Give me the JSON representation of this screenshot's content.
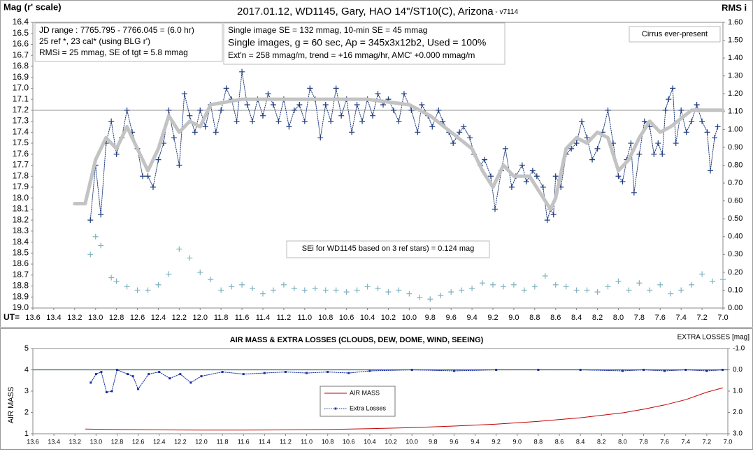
{
  "chart_data": [
    {
      "type": "line",
      "title": "2017.01.12,  WD1145, Gary, HAO  14\"/ST10(C), Arizona",
      "subtitle": " - v7114",
      "y_label": "Mag (r' scale)",
      "y2_label": "RMS i",
      "x_label": "UT=",
      "y_inverted": true,
      "ylim": [
        16.4,
        19.0
      ],
      "yticks": [
        16.4,
        16.5,
        16.6,
        16.7,
        16.8,
        16.9,
        {
          "value": 17,
          "label": "17.0"
        },
        17.1,
        17.2,
        17.3,
        17.4,
        17.5,
        17.6,
        17.7,
        17.8,
        17.9,
        {
          "value": 18,
          "label": "18.0"
        },
        18.1,
        18.2,
        18.3,
        18.4,
        18.5,
        18.6,
        18.7,
        18.8,
        18.9,
        {
          "value": 19,
          "label": "19.0"
        }
      ],
      "y2lim": [
        0,
        1.6
      ],
      "y2ticks": [
        {
          "value": 0,
          "label": "0.00"
        },
        {
          "value": 0.1,
          "label": "0.10"
        },
        {
          "value": 0.2,
          "label": "0.20"
        },
        {
          "value": 0.3,
          "label": "0.30"
        },
        {
          "value": 0.4,
          "label": "0.40"
        },
        {
          "value": 0.5,
          "label": "0.50"
        },
        {
          "value": 0.6,
          "label": "0.60"
        },
        {
          "value": 0.7,
          "label": "0.70"
        },
        {
          "value": 0.8,
          "label": "0.80"
        },
        {
          "value": 0.9,
          "label": "0.90"
        },
        {
          "value": 1,
          "label": "1.00"
        },
        {
          "value": 1.1,
          "label": "1.10"
        },
        {
          "value": 1.2,
          "label": "1.20"
        },
        {
          "value": 1.3,
          "label": "1.30"
        },
        {
          "value": 1.4,
          "label": "1.40"
        },
        {
          "value": 1.5,
          "label": "1.50"
        },
        {
          "value": 1.6,
          "label": "1.60"
        }
      ],
      "xlim": [
        7.0,
        13.6
      ],
      "xticks": [
        {
          "value": 7,
          "label": "7.0"
        },
        7.2,
        7.4,
        7.6,
        7.8,
        {
          "value": 8,
          "label": "8.0"
        },
        8.2,
        8.4,
        8.6,
        8.8,
        {
          "value": 9,
          "label": "9.0"
        },
        9.2,
        9.4,
        9.6,
        9.8,
        {
          "value": 10,
          "label": "10.0"
        },
        10.2,
        10.4,
        10.6,
        10.8,
        {
          "value": 11,
          "label": "11.0"
        },
        11.2,
        11.4,
        11.6,
        11.8,
        {
          "value": 12,
          "label": "12.0"
        },
        12.2,
        12.4,
        12.6,
        12.8,
        {
          "value": 13,
          "label": "13.0"
        },
        13.2,
        13.4,
        13.6
      ],
      "hlines": [
        {
          "value": 17.2,
          "color": "#a0a0a0"
        }
      ],
      "series": [
        {
          "color": "#1f3b7a",
          "line": "dotted",
          "marker": "plus",
          "width": 1,
          "x": [
            7.05,
            7.08,
            7.12,
            7.15,
            7.2,
            7.25,
            7.3,
            7.35,
            7.4,
            7.45,
            7.48,
            7.52,
            7.55,
            7.58,
            7.62,
            7.66,
            7.7,
            7.75,
            7.8,
            7.85,
            7.88,
            7.92,
            7.96,
            8.0,
            8.05,
            8.1,
            8.15,
            8.2,
            8.25,
            8.3,
            8.35,
            8.4,
            8.45,
            8.5,
            8.55,
            8.6,
            8.62,
            8.65,
            8.68,
            8.72,
            8.78,
            8.82,
            8.88,
            8.92,
            8.98,
            9.02,
            9.08,
            9.12,
            9.18,
            9.22,
            9.28,
            9.32,
            9.38,
            9.42,
            9.48,
            9.52,
            9.58,
            9.62,
            9.68,
            9.72,
            9.78,
            9.82,
            9.88,
            9.92,
            9.98,
            10.05,
            10.1,
            10.15,
            10.2,
            10.25,
            10.3,
            10.35,
            10.4,
            10.45,
            10.5,
            10.55,
            10.6,
            10.65,
            10.7,
            10.75,
            10.8,
            10.85,
            10.9,
            10.95,
            11.0,
            11.05,
            11.1,
            11.15,
            11.2,
            11.25,
            11.3,
            11.35,
            11.4,
            11.45,
            11.5,
            11.55,
            11.6,
            11.65,
            11.7,
            11.75,
            11.8,
            11.85,
            11.9,
            11.95,
            12.0,
            12.05,
            12.1,
            12.15,
            12.2,
            12.25,
            12.3,
            12.35,
            12.4,
            12.45,
            12.5,
            12.55,
            12.6,
            12.65,
            12.7,
            12.75,
            12.8,
            12.85,
            12.9,
            12.95,
            13.0,
            13.05
          ],
          "values": [
            17.35,
            17.45,
            17.75,
            17.4,
            17.3,
            17.15,
            17.3,
            17.4,
            17.2,
            17.5,
            17.0,
            17.1,
            17.2,
            17.6,
            17.5,
            17.6,
            17.35,
            17.3,
            17.6,
            17.95,
            17.5,
            17.65,
            17.85,
            17.8,
            17.5,
            17.2,
            17.4,
            17.55,
            17.65,
            17.45,
            17.3,
            17.5,
            17.55,
            17.6,
            17.9,
            17.8,
            18.15,
            18.1,
            18.2,
            17.9,
            17.8,
            17.75,
            17.85,
            17.7,
            17.8,
            17.9,
            17.55,
            17.75,
            18.1,
            17.8,
            17.65,
            17.7,
            17.6,
            17.45,
            17.35,
            17.4,
            17.5,
            17.4,
            17.3,
            17.2,
            17.35,
            17.25,
            17.15,
            17.4,
            17.2,
            17.05,
            17.3,
            17.2,
            17.1,
            17.15,
            17.05,
            17.25,
            17.1,
            17.3,
            17.15,
            17.4,
            17.1,
            17.25,
            17.0,
            17.3,
            17.15,
            17.45,
            17.1,
            17.0,
            17.3,
            17.15,
            17.2,
            17.35,
            17.1,
            17.3,
            17.15,
            17.05,
            17.25,
            17.1,
            17.3,
            17.15,
            16.85,
            17.3,
            17.1,
            17.0,
            17.2,
            17.4,
            17.15,
            17.35,
            17.2,
            17.4,
            17.25,
            17.05,
            17.7,
            17.45,
            17.2,
            17.5,
            17.65,
            17.9,
            17.8,
            17.8,
            17.55,
            17.4,
            17.2,
            17.45,
            17.6,
            17.3,
            17.5,
            18.15,
            17.7,
            18.2
          ]
        },
        {
          "color": "#c3c3c3",
          "line": "solid",
          "marker": "none",
          "width": 5,
          "x": [
            7.0,
            7.3,
            7.5,
            7.6,
            7.7,
            7.8,
            7.9,
            8.0,
            8.1,
            8.2,
            8.3,
            8.4,
            8.5,
            8.6,
            8.65,
            8.75,
            8.85,
            9.0,
            9.1,
            9.2,
            9.3,
            9.4,
            9.6,
            9.8,
            10.0,
            10.4,
            11.0,
            11.6,
            11.9,
            12.0,
            12.1,
            12.2,
            12.3,
            12.4,
            12.5,
            12.6,
            12.7,
            12.8,
            12.9,
            13.0,
            13.1,
            13.2
          ],
          "values": [
            17.2,
            17.2,
            17.35,
            17.4,
            17.3,
            17.45,
            17.65,
            17.75,
            17.45,
            17.4,
            17.5,
            17.45,
            17.55,
            18.0,
            18.1,
            17.95,
            17.8,
            17.8,
            17.7,
            17.9,
            17.75,
            17.55,
            17.4,
            17.25,
            17.15,
            17.1,
            17.1,
            17.1,
            17.15,
            17.35,
            17.3,
            17.4,
            17.25,
            17.55,
            17.75,
            17.55,
            17.35,
            17.55,
            17.45,
            17.65,
            18.05,
            18.05
          ]
        },
        {
          "color": "#7fb3c0",
          "line": "none",
          "marker": "plus",
          "width": 1,
          "axis": "y2",
          "x": [
            7.0,
            7.1,
            7.2,
            7.3,
            7.4,
            7.5,
            7.6,
            7.7,
            7.8,
            7.9,
            8.0,
            8.1,
            8.2,
            8.3,
            8.4,
            8.5,
            8.6,
            8.7,
            8.8,
            8.9,
            9.0,
            9.1,
            9.2,
            9.3,
            9.4,
            9.5,
            9.6,
            9.7,
            9.8,
            9.9,
            10.0,
            10.1,
            10.2,
            10.3,
            10.4,
            10.5,
            10.6,
            10.7,
            10.8,
            10.9,
            11.0,
            11.1,
            11.2,
            11.3,
            11.4,
            11.5,
            11.6,
            11.7,
            11.8,
            11.9,
            12.0,
            12.1,
            12.2,
            12.3,
            12.4,
            12.5,
            12.6,
            12.7,
            12.8,
            12.85,
            12.95,
            13.0,
            13.05
          ],
          "values": [
            0.16,
            0.15,
            0.19,
            0.13,
            0.1,
            0.08,
            0.13,
            0.1,
            0.14,
            0.1,
            0.15,
            0.12,
            0.09,
            0.1,
            0.1,
            0.12,
            0.13,
            0.18,
            0.12,
            0.1,
            0.13,
            0.12,
            0.13,
            0.14,
            0.11,
            0.1,
            0.09,
            0.07,
            0.05,
            0.06,
            0.08,
            0.1,
            0.09,
            0.11,
            0.12,
            0.1,
            0.09,
            0.1,
            0.1,
            0.11,
            0.1,
            0.11,
            0.13,
            0.1,
            0.08,
            0.11,
            0.13,
            0.12,
            0.1,
            0.16,
            0.2,
            0.28,
            0.33,
            0.19,
            0.13,
            0.1,
            0.1,
            0.12,
            0.15,
            0.17,
            0.35,
            0.4,
            0.3
          ]
        }
      ],
      "text_boxes": [
        [
          "JD range  : 7765.795 - 7766.045 = (6.0 hr)",
          "25 ref *, 23 cal* (using BLG r')",
          "RMSi = 25 mmag, SE of tgt = 5.8 mmag"
        ],
        [
          "Single image SE = 132 mmag, 10-min SE = 45 mmag",
          "Single images, g = 60 sec, Ap = 345x3x12b2, Used = 100%",
          "Ext'n = 258  mmag/m, trend = +16 mmag/hr, AMC' +0.000 mmag/m"
        ],
        [
          "Cirrus ever-present"
        ],
        [
          "SEi for WD1145 based on 3 ref stars) = 0.124 mag"
        ]
      ]
    },
    {
      "type": "line",
      "title": "AIR MASS & EXTRA LOSSES (CLOUDS, DEW, DOME, WIND, SEEING)",
      "y_label": "AIR MASS",
      "y2_label": "EXTRA LOSSES [mag]",
      "ylim": [
        1,
        5
      ],
      "yticks": [
        1,
        2,
        3,
        4,
        5
      ],
      "y2_inverted": true,
      "y2lim": [
        -1,
        3
      ],
      "y2ticks": [
        {
          "value": -1,
          "label": "-1.0"
        },
        {
          "value": 0,
          "label": "0.0"
        },
        {
          "value": 1,
          "label": "1.0"
        },
        {
          "value": 2,
          "label": "2.0"
        },
        {
          "value": 3,
          "label": "3.0"
        }
      ],
      "xlim": [
        7.0,
        13.6
      ],
      "xticks": [
        {
          "value": 7,
          "label": "7.0"
        },
        7.2,
        7.4,
        7.6,
        7.8,
        {
          "value": 8,
          "label": "8.0"
        },
        8.2,
        8.4,
        8.6,
        8.8,
        {
          "value": 9,
          "label": "9.0"
        },
        9.2,
        9.4,
        9.6,
        9.8,
        {
          "value": 10,
          "label": "10.0"
        },
        10.2,
        10.4,
        10.6,
        10.8,
        {
          "value": 11,
          "label": "11.0"
        },
        11.2,
        11.4,
        11.6,
        11.8,
        {
          "value": 12,
          "label": "12.0"
        },
        12.2,
        12.4,
        12.6,
        12.8,
        {
          "value": 13,
          "label": "13.0"
        },
        13.2,
        13.4,
        13.6
      ],
      "hlines": [
        {
          "value": 4,
          "color": "#2a6b6b"
        }
      ],
      "series": [
        {
          "name": "AIR MASS",
          "color": "#c00000",
          "line": "solid",
          "marker": "none",
          "width": 1,
          "x": [
            7.05,
            7.2,
            7.4,
            7.6,
            7.8,
            8.0,
            8.4,
            8.8,
            9.2,
            9.6,
            10.0,
            10.4,
            10.8,
            11.2,
            11.6,
            12.0,
            12.4,
            12.8,
            13.1
          ],
          "values": [
            3.15,
            2.95,
            2.6,
            2.35,
            2.15,
            1.98,
            1.75,
            1.58,
            1.45,
            1.36,
            1.29,
            1.24,
            1.2,
            1.18,
            1.17,
            1.17,
            1.18,
            1.2,
            1.22
          ]
        },
        {
          "name": "Extra Losses",
          "color": "#1a2ea0",
          "line": "dotted",
          "marker": "dot",
          "width": 1,
          "axis": "y2",
          "x": [
            7.05,
            7.2,
            7.4,
            7.6,
            7.8,
            8.0,
            8.4,
            8.8,
            9.2,
            9.6,
            10.0,
            10.4,
            10.6,
            10.8,
            11.0,
            11.2,
            11.4,
            11.6,
            11.8,
            12.0,
            12.1,
            12.2,
            12.3,
            12.4,
            12.5,
            12.6,
            12.65,
            12.7,
            12.8,
            12.85,
            12.9,
            12.95,
            13.0,
            13.05
          ],
          "values": [
            0.0,
            0.05,
            0.0,
            0.05,
            0.0,
            0.05,
            0.0,
            0.0,
            0.0,
            0.05,
            0.0,
            0.05,
            0.15,
            0.1,
            0.15,
            0.1,
            0.15,
            0.2,
            0.1,
            0.3,
            0.6,
            0.2,
            0.4,
            0.1,
            0.2,
            0.9,
            0.3,
            0.2,
            0.0,
            1.0,
            1.05,
            0.1,
            0.2,
            0.6
          ]
        }
      ]
    }
  ]
}
